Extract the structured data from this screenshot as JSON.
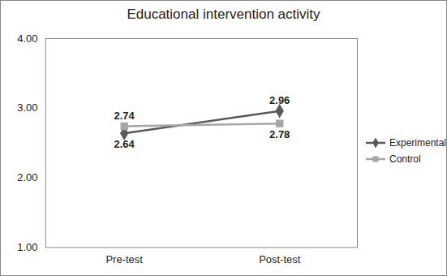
{
  "chart_data": {
    "type": "line",
    "title": "Educational intervention activity",
    "categories": [
      "Pre-test",
      "Post-test"
    ],
    "series": [
      {
        "name": "Experimental",
        "color": "#595959",
        "marker": "diamond",
        "line_style": "solid",
        "values": [
          2.64,
          2.96
        ]
      },
      {
        "name": "Control",
        "color": "#a6a6a6",
        "marker": "square",
        "line_style": "solid",
        "values": [
          2.74,
          2.78
        ]
      }
    ],
    "ylim": [
      1,
      4
    ],
    "yticks": [
      {
        "value": 1,
        "label": "1.00"
      },
      {
        "value": 2,
        "label": "2.00"
      },
      {
        "value": 3,
        "label": "3.00"
      },
      {
        "value": 4,
        "label": "4.00"
      }
    ],
    "grid": false,
    "legend": "right",
    "data_labels": true
  }
}
